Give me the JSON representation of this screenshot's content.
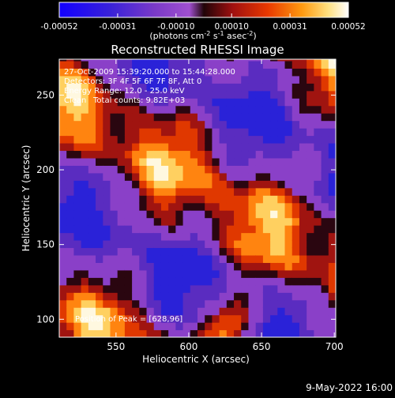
{
  "colorbar": {
    "ticks": [
      "-0.00052",
      "-0.00031",
      "-0.00010",
      "0.00010",
      "0.00031",
      "0.00052"
    ],
    "units_prefix": "(photons cm",
    "units_exp1": "-2",
    "units_mid": " s",
    "units_exp2": "-1",
    "units_mid2": " asec",
    "units_exp3": "-2",
    "units_suffix": ")"
  },
  "annotations": {
    "line1": "27-Oct-2009 15:39:20.000 to 15:44:28.000",
    "line2": "Detectors: 3F 4F 5F 6F 7F 8F, Att 0",
    "line3": "Energy Range: 12.0 - 25.0 keV",
    "line4_left": "Clean",
    "line4_right": "Total counts: 9.82E+03",
    "peak": "Position of Peak = [628,96]"
  },
  "footer": {
    "date": "9-May-2022 16:00"
  },
  "chart_data": {
    "type": "heatmap",
    "title": "Reconstructed RHESSI Image",
    "xlabel": "Heliocentric X (arcsec)",
    "ylabel": "Heliocentric Y (arcsec)",
    "xlim": [
      511,
      701
    ],
    "ylim": [
      88,
      274
    ],
    "xticks": [
      550,
      600,
      650,
      700
    ],
    "yticks": [
      100,
      150,
      200,
      250
    ],
    "zlim": [
      -0.00052,
      0.00052
    ],
    "colormap": "rhessi-blue-purple-red-yellow-white",
    "peak": [
      628,
      96
    ]
  },
  "colors": {
    "background": "#000000",
    "foreground": "#ffffff",
    "cmap_stops": [
      "#1a00ff",
      "#5a22c8",
      "#8a3ccc",
      "#9b50d8",
      "#2a0a10",
      "#a01010",
      "#e03000",
      "#ff8000",
      "#ffd060",
      "#ffffff"
    ]
  }
}
